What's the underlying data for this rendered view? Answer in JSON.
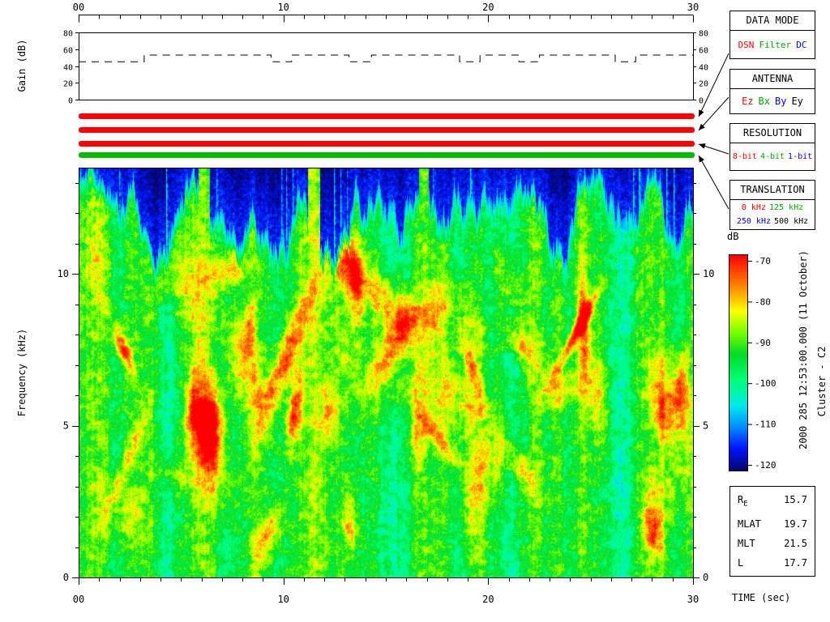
{
  "gain_panel": {
    "ylabel": "Gain (dB)",
    "yticks": [
      0,
      20,
      40,
      60,
      80
    ]
  },
  "spectrogram": {
    "ylabel": "Frequency (kHz)",
    "freq_ticks": [
      0,
      5,
      10
    ],
    "fmax_khz": 13.5
  },
  "time_axis": {
    "label": "TIME (sec)",
    "tick_labels": [
      "00",
      "10",
      "20",
      "30"
    ],
    "tick_values": [
      0,
      10,
      20,
      30
    ],
    "minor_tick_step_sec": 1
  },
  "status_bars": {
    "bars": [
      {
        "name": "data-mode",
        "selected": "DSN",
        "color": "#ff0000"
      },
      {
        "name": "antenna",
        "selected": "Ez",
        "color": "#ff0000"
      },
      {
        "name": "resolution",
        "selected": "8-bit",
        "color": "#ff0000"
      },
      {
        "name": "translation",
        "selected": "125 kHz",
        "color": "#00bb00"
      }
    ]
  },
  "legend_boxes": [
    {
      "title": "DATA MODE",
      "items": [
        {
          "label": "DSN",
          "color": "#ff0000"
        },
        {
          "label": "Filter",
          "color": "#00aa00"
        },
        {
          "label": "DC",
          "color": "#0000ff"
        }
      ]
    },
    {
      "title": "ANTENNA",
      "items": [
        {
          "label": "Ez",
          "color": "#ff0000"
        },
        {
          "label": "Bx",
          "color": "#00aa00"
        },
        {
          "label": "By",
          "color": "#0000ff"
        },
        {
          "label": "Ey",
          "color": "#000000"
        }
      ]
    },
    {
      "title": "RESOLUTION",
      "items": [
        {
          "label": "8-bit",
          "color": "#ff0000"
        },
        {
          "label": "4-bit",
          "color": "#00aa00"
        },
        {
          "label": "1-bit",
          "color": "#0000ff"
        }
      ]
    },
    {
      "title": "TRANSLATION",
      "items": [
        {
          "label": "0 kHz",
          "color": "#ff0000"
        },
        {
          "label": "125 kHz",
          "color": "#00aa00"
        },
        {
          "label": "250 kHz",
          "color": "#0000ff"
        },
        {
          "label": "500 kHz",
          "color": "#000000"
        }
      ]
    }
  ],
  "colorbar": {
    "label": "dB",
    "ticks": [
      -70,
      -80,
      -90,
      -100,
      -110,
      -120
    ],
    "top_color_db": -70,
    "bottom_color_db": -120
  },
  "side_text": {
    "datetime": "2000 285 12:53:00.000 (11 October)",
    "spacecraft": "Cluster - C2"
  },
  "params": {
    "rows": [
      {
        "label": "R",
        "sub": "E",
        "value": "15.7"
      },
      {
        "label": "MLAT",
        "value": "19.7"
      },
      {
        "label": "MLT",
        "value": "21.5"
      },
      {
        "label": "L",
        "value": "17.7"
      }
    ]
  },
  "chart_data": [
    {
      "type": "line",
      "title": "Receiver gain vs time",
      "ylabel": "Gain (dB)",
      "xlim": [
        0,
        30
      ],
      "ylim": [
        0,
        80
      ],
      "yticks": [
        0,
        20,
        40,
        60,
        80
      ],
      "xticks": [
        0,
        10,
        20,
        30
      ],
      "line_style": "dashed step",
      "points": [
        [
          0,
          45
        ],
        [
          3.2,
          53
        ],
        [
          9.4,
          45
        ],
        [
          10.4,
          53
        ],
        [
          13.2,
          45
        ],
        [
          14.3,
          53
        ],
        [
          18.6,
          45
        ],
        [
          19.6,
          53
        ],
        [
          21.5,
          45
        ],
        [
          22.5,
          53
        ],
        [
          26.2,
          45
        ],
        [
          27.2,
          53
        ],
        [
          30,
          53
        ]
      ]
    },
    {
      "type": "heatmap",
      "title": "Cluster C2 wideband (WBD) spectrogram",
      "xlabel": "TIME (sec)",
      "ylabel": "Frequency (kHz)",
      "xlim": [
        0,
        30
      ],
      "ylim": [
        0,
        13.5
      ],
      "xticks": [
        0,
        10,
        20,
        30
      ],
      "yticks": [
        0,
        5,
        10
      ],
      "color_scale": {
        "label": "dB",
        "min": -120,
        "max": -70,
        "ticks": [
          -70,
          -80,
          -90,
          -100,
          -110,
          -120
        ]
      },
      "features": [
        "broadband noise from 0 to ~12 kHz at roughly -90 to -95 dB (green)",
        "quasi-periodic vertical intensifications about every 2.7 s",
        "low-power dark-blue band above ~12 kHz near -115 to -120 dB with ragged lower edge",
        "sporadic intense red/orange patches reaching -70 to -80 dB mostly between 3 and 9 kHz",
        "narrow bright vertical streaks cutting through the dark top band"
      ]
    }
  ]
}
